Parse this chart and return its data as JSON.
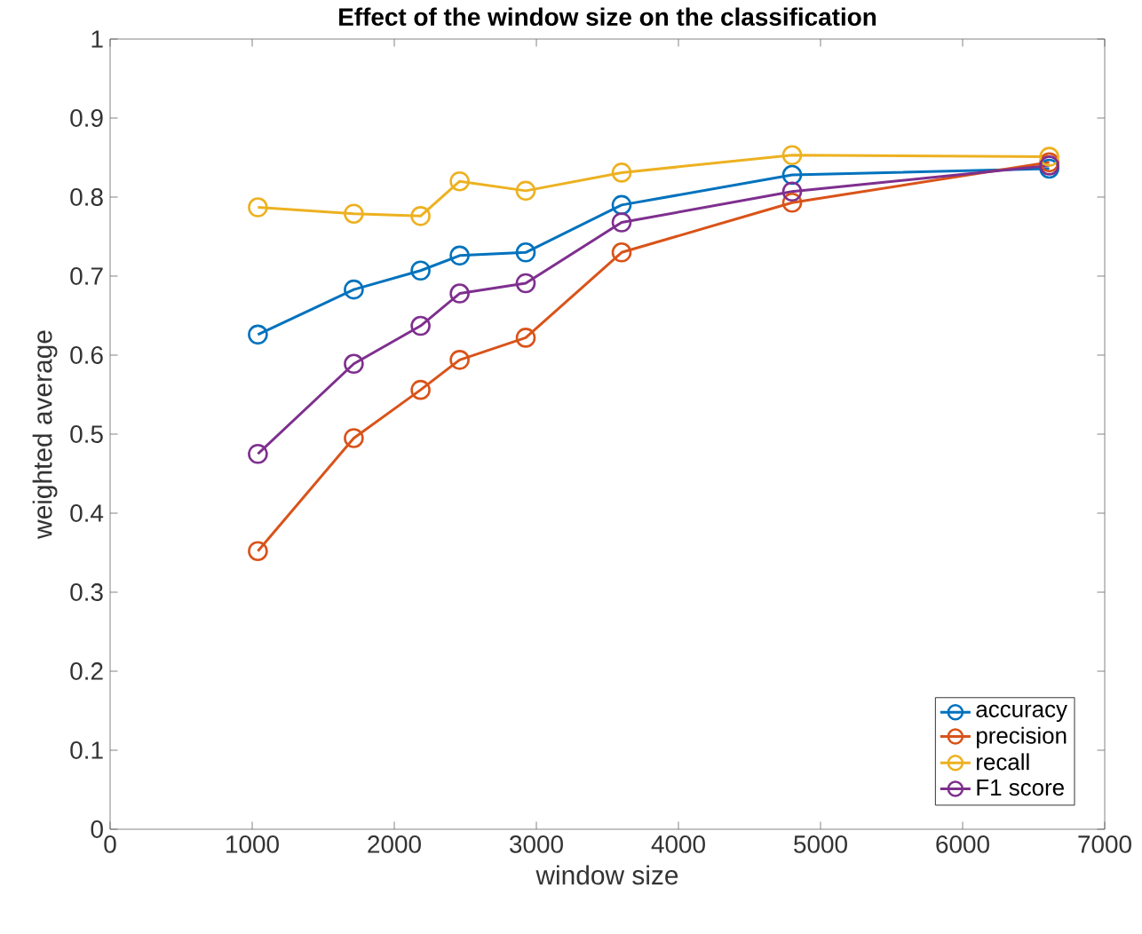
{
  "chart_data": {
    "type": "line",
    "title": "Effect of the window size on the classification",
    "xlabel": "window size",
    "ylabel": "weighted average",
    "x": [
      1040,
      1715,
      2185,
      2460,
      2925,
      3600,
      4800,
      6610
    ],
    "series": [
      {
        "name": "accuracy",
        "color": "#0072bd",
        "values": [
          0.626,
          0.683,
          0.707,
          0.726,
          0.73,
          0.79,
          0.828,
          0.836
        ]
      },
      {
        "name": "precision",
        "color": "#d95319",
        "values": [
          0.352,
          0.495,
          0.556,
          0.594,
          0.622,
          0.73,
          0.793,
          0.844
        ]
      },
      {
        "name": "recall",
        "color": "#edb120",
        "values": [
          0.787,
          0.779,
          0.776,
          0.82,
          0.808,
          0.831,
          0.853,
          0.851
        ]
      },
      {
        "name": "F1 score",
        "color": "#7e2f8e",
        "values": [
          0.475,
          0.589,
          0.637,
          0.678,
          0.691,
          0.768,
          0.807,
          0.84
        ]
      }
    ],
    "xlim": [
      0,
      7000
    ],
    "xticks": [
      0,
      1000,
      2000,
      3000,
      4000,
      5000,
      6000,
      7000
    ],
    "ylim": [
      0,
      1
    ],
    "yticks": [
      0,
      0.1,
      0.2,
      0.3,
      0.4,
      0.5,
      0.6,
      0.7,
      0.8,
      0.9,
      1
    ],
    "legend": "bottom right",
    "marker": "circle",
    "line_style": "solid",
    "grid": false
  }
}
